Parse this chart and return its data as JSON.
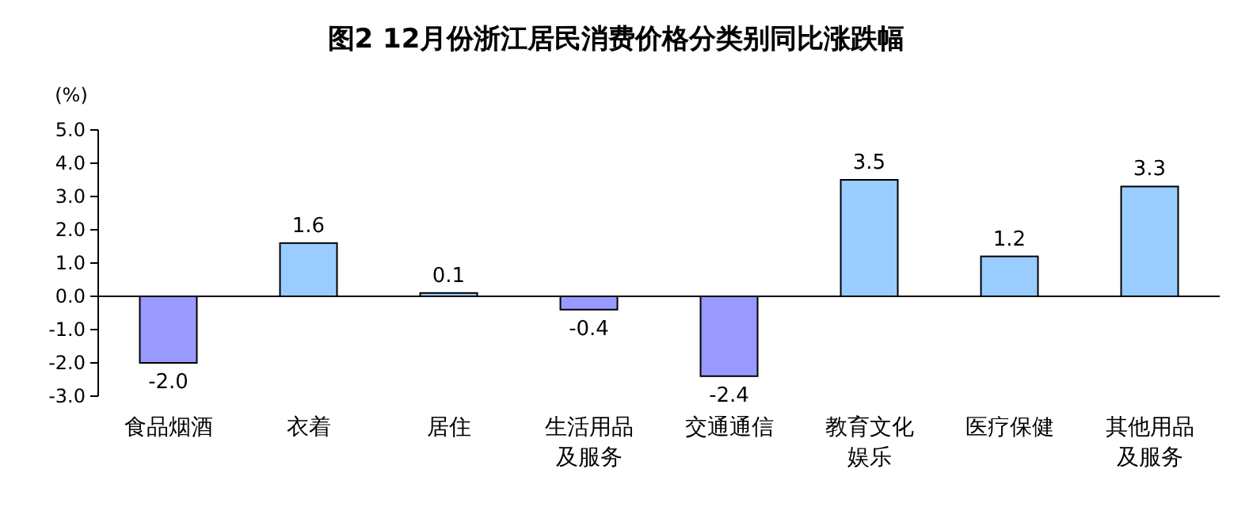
{
  "chart_data": {
    "type": "bar",
    "title": "图2 12月份浙江居民消费价格分类别同比涨跌幅",
    "ylabel": "(%)",
    "categories": [
      "食品烟酒",
      "衣着",
      "居住",
      "生活用品及服务",
      "交通通信",
      "教育文化娱乐",
      "医疗保健",
      "其他用品及服务"
    ],
    "values": [
      -2.0,
      1.6,
      0.1,
      -0.4,
      -2.4,
      3.5,
      1.2,
      3.3
    ],
    "colors": [
      "#9999ff",
      "#99ccff",
      "#99ccff",
      "#9999ff",
      "#9999ff",
      "#99ccff",
      "#99ccff",
      "#99ccff"
    ],
    "value_labels": [
      "-2.0",
      "1.6",
      "0.1",
      "-0.4",
      "-2.4",
      "3.5",
      "1.2",
      "3.3"
    ],
    "ylim": [
      -3,
      5
    ],
    "yticks": [
      {
        "value": -3,
        "label": "-3.0"
      },
      {
        "value": -2,
        "label": "-2.0"
      },
      {
        "value": -1,
        "label": "-1.0"
      },
      {
        "value": 0,
        "label": "0.0"
      },
      {
        "value": 1,
        "label": "1.0"
      },
      {
        "value": 2,
        "label": "2.0"
      },
      {
        "value": 3,
        "label": "3.0"
      },
      {
        "value": 4,
        "label": "4.0"
      },
      {
        "value": 5,
        "label": "5.0"
      }
    ],
    "tick_labels": "xy"
  }
}
